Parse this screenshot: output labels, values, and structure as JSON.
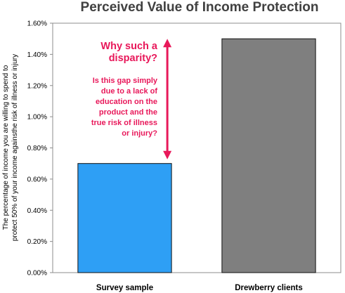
{
  "chart_data": {
    "type": "bar",
    "title": "Perceived Value of Income Protection",
    "ylabel_lines": [
      "The percentage of income you are willing to spend to",
      "protect 50% of your income againsthe  risk of illness or injury"
    ],
    "categories": [
      "Survey sample",
      "Drewberry clients"
    ],
    "values": [
      0.7,
      1.5
    ],
    "bar_colors": [
      "#2e9ff5",
      "#7f7f7f"
    ],
    "ylim": [
      0,
      1.6
    ],
    "yticks": [
      "0.00%",
      "0.20%",
      "0.40%",
      "0.60%",
      "0.80%",
      "1.00%",
      "1.20%",
      "1.40%",
      "1.60%"
    ],
    "grid": false,
    "annotation": {
      "headline": [
        "Why such a",
        "disparity?"
      ],
      "body": [
        "Is this gap simply",
        "due to a lack of",
        "education on the",
        "product and the",
        "true risk of illness",
        "or injury?"
      ],
      "color": "#e8185a",
      "arrow_from_value": 1.5,
      "arrow_to_value": 0.7
    }
  }
}
